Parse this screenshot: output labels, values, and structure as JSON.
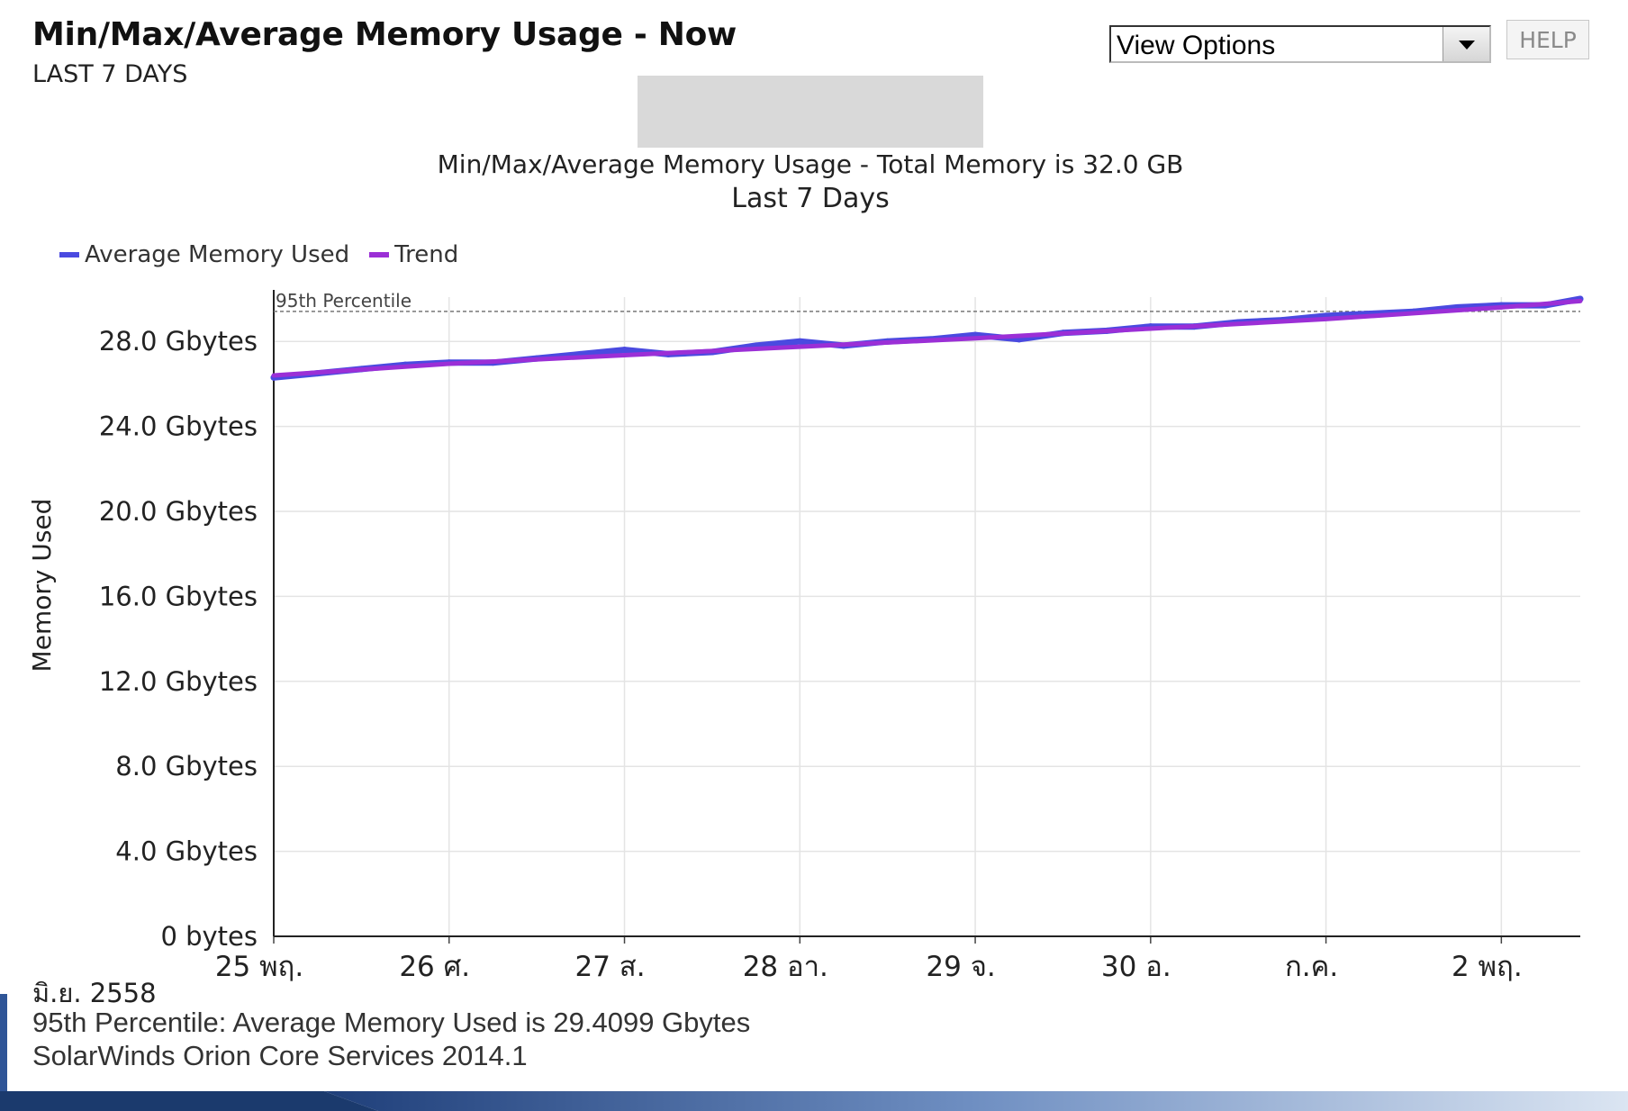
{
  "resource": {
    "title": "Min/Max/Average Memory Usage - Now",
    "subtitle": "LAST 7 DAYS",
    "view_options_label": "View Options",
    "help_label": "HELP"
  },
  "chart_data": {
    "type": "line",
    "title": "Min/Max/Average Memory Usage - Total Memory is 32.0 GB",
    "subtitle": "Last 7 Days",
    "ylabel": "Memory Used",
    "xlabel": "",
    "ylim": [
      0,
      30
    ],
    "grid": true,
    "legend_position": "top-left",
    "y_ticks": [
      {
        "value": 0,
        "label": "0 bytes"
      },
      {
        "value": 4,
        "label": "4.0 Gbytes"
      },
      {
        "value": 8,
        "label": "8.0 Gbytes"
      },
      {
        "value": 12,
        "label": "12.0 Gbytes"
      },
      {
        "value": 16,
        "label": "16.0 Gbytes"
      },
      {
        "value": 20,
        "label": "20.0 Gbytes"
      },
      {
        "value": 24,
        "label": "24.0 Gbytes"
      },
      {
        "value": 28,
        "label": "28.0 Gbytes"
      }
    ],
    "x_ticks": [
      "25 พฤ.",
      "26 ศ.",
      "27 ส.",
      "28 อา.",
      "29 จ.",
      "30 อ.",
      "ก.ค.",
      "2 พฤ."
    ],
    "x_range_days": [
      0,
      7.45
    ],
    "x_axis_secondary_label": "มิ.ย. 2558",
    "series": [
      {
        "name": "Average Memory Used",
        "color": "#4a4ae0",
        "x_days": [
          0,
          0.25,
          0.5,
          0.75,
          1.0,
          1.25,
          1.5,
          1.75,
          2.0,
          2.25,
          2.5,
          2.75,
          3.0,
          3.25,
          3.5,
          3.75,
          4.0,
          4.25,
          4.5,
          4.75,
          5.0,
          5.25,
          5.5,
          5.75,
          6.0,
          6.25,
          6.5,
          6.75,
          7.0,
          7.25,
          7.45
        ],
        "values": [
          26.3,
          26.5,
          26.7,
          26.9,
          27.0,
          27.0,
          27.2,
          27.4,
          27.6,
          27.4,
          27.5,
          27.8,
          28.0,
          27.8,
          28.0,
          28.1,
          28.3,
          28.1,
          28.4,
          28.5,
          28.7,
          28.7,
          28.9,
          29.0,
          29.2,
          29.3,
          29.4,
          29.6,
          29.7,
          29.7,
          30.0
        ]
      },
      {
        "name": "Trend",
        "color": "#9b2fd6",
        "x_days": [
          0,
          1.0,
          2.0,
          3.0,
          4.0,
          5.0,
          6.0,
          7.0,
          7.45
        ],
        "values": [
          26.4,
          26.95,
          27.35,
          27.75,
          28.15,
          28.6,
          29.05,
          29.6,
          29.9
        ]
      }
    ],
    "reference_lines": [
      {
        "label": "95th Percentile",
        "value": 29.4099
      }
    ]
  },
  "footer": {
    "date_label": "มิ.ย. 2558",
    "percentile_text": "95th Percentile: Average Memory Used is 29.4099  Gbytes",
    "source_text": "SolarWinds Orion Core Services 2014.1"
  }
}
